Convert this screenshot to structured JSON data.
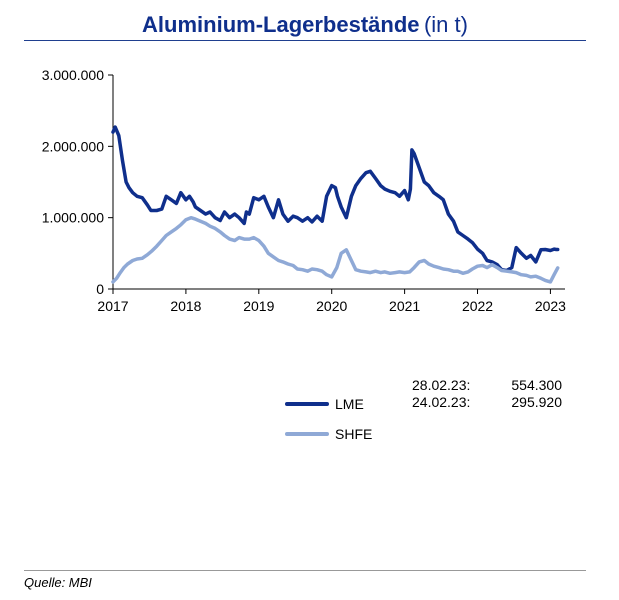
{
  "title": {
    "main": "Aluminium-Lagerbestände",
    "unit": "(in t)"
  },
  "colors": {
    "LME": "#0f2f8c",
    "SHFE": "#8fa9d6"
  },
  "notes": [
    {
      "date": "28.02.23:",
      "value": "554.300"
    },
    {
      "date": "24.02.23:",
      "value": "295.920"
    }
  ],
  "legend": [
    {
      "label": "LME",
      "color": "#0f2f8c"
    },
    {
      "label": "SHFE",
      "color": "#8fa9d6"
    }
  ],
  "footer": "Quelle: MBI",
  "chart_data": {
    "type": "line",
    "title": "Aluminium-Lagerbestände (in t)",
    "xlabel": "",
    "ylabel": "",
    "ylim": [
      0,
      3000000
    ],
    "xlim": [
      2017.0,
      2023.2
    ],
    "yticks": [
      0,
      1000000,
      2000000,
      3000000
    ],
    "ytick_labels": [
      "0",
      "1.000.000",
      "2.000.000",
      "3.000.000"
    ],
    "xticks": [
      2017,
      2018,
      2019,
      2020,
      2021,
      2022,
      2023
    ],
    "xtick_labels": [
      "2017",
      "2018",
      "2019",
      "2020",
      "2021",
      "2022",
      "2023"
    ],
    "grid": false,
    "series": [
      {
        "name": "LME",
        "x": [
          2017.0,
          2017.03,
          2017.08,
          2017.13,
          2017.18,
          2017.22,
          2017.27,
          2017.33,
          2017.4,
          2017.47,
          2017.52,
          2017.6,
          2017.67,
          2017.73,
          2017.8,
          2017.87,
          2017.93,
          2018.0,
          2018.05,
          2018.1,
          2018.13,
          2018.2,
          2018.27,
          2018.33,
          2018.4,
          2018.47,
          2018.53,
          2018.6,
          2018.67,
          2018.73,
          2018.8,
          2018.83,
          2018.87,
          2018.93,
          2019.0,
          2019.07,
          2019.13,
          2019.2,
          2019.27,
          2019.33,
          2019.4,
          2019.47,
          2019.53,
          2019.6,
          2019.67,
          2019.73,
          2019.8,
          2019.87,
          2019.93,
          2020.0,
          2020.05,
          2020.08,
          2020.13,
          2020.2,
          2020.27,
          2020.33,
          2020.4,
          2020.47,
          2020.53,
          2020.6,
          2020.67,
          2020.73,
          2020.8,
          2020.87,
          2020.93,
          2021.0,
          2021.05,
          2021.08,
          2021.1,
          2021.13,
          2021.2,
          2021.27,
          2021.33,
          2021.4,
          2021.47,
          2021.53,
          2021.6,
          2021.67,
          2021.73,
          2021.8,
          2021.87,
          2021.93,
          2022.0,
          2022.07,
          2022.13,
          2022.2,
          2022.27,
          2022.33,
          2022.4,
          2022.47,
          2022.53,
          2022.6,
          2022.67,
          2022.73,
          2022.8,
          2022.87,
          2022.93,
          2023.0,
          2023.05,
          2023.08,
          2023.1
        ],
        "y": [
          2200000,
          2270000,
          2150000,
          1800000,
          1500000,
          1420000,
          1350000,
          1300000,
          1280000,
          1180000,
          1100000,
          1100000,
          1120000,
          1300000,
          1250000,
          1200000,
          1350000,
          1250000,
          1300000,
          1220000,
          1150000,
          1100000,
          1050000,
          1080000,
          1000000,
          960000,
          1080000,
          1000000,
          1050000,
          1000000,
          920000,
          1080000,
          1050000,
          1280000,
          1250000,
          1300000,
          1150000,
          1000000,
          1250000,
          1050000,
          950000,
          1020000,
          1000000,
          950000,
          1000000,
          940000,
          1020000,
          950000,
          1300000,
          1450000,
          1420000,
          1300000,
          1150000,
          1000000,
          1300000,
          1450000,
          1550000,
          1630000,
          1650000,
          1550000,
          1450000,
          1400000,
          1370000,
          1350000,
          1300000,
          1380000,
          1250000,
          1400000,
          1950000,
          1900000,
          1700000,
          1500000,
          1450000,
          1350000,
          1300000,
          1250000,
          1050000,
          950000,
          800000,
          750000,
          700000,
          650000,
          560000,
          500000,
          400000,
          380000,
          340000,
          270000,
          260000,
          300000,
          580000,
          500000,
          430000,
          470000,
          380000,
          550000,
          554300,
          540000,
          560000,
          554300,
          554300
        ]
      },
      {
        "name": "SHFE",
        "x": [
          2017.0,
          2017.05,
          2017.1,
          2017.15,
          2017.2,
          2017.27,
          2017.33,
          2017.4,
          2017.47,
          2017.53,
          2017.6,
          2017.67,
          2017.73,
          2017.8,
          2017.87,
          2017.93,
          2018.0,
          2018.07,
          2018.13,
          2018.2,
          2018.27,
          2018.33,
          2018.4,
          2018.47,
          2018.53,
          2018.6,
          2018.67,
          2018.73,
          2018.8,
          2018.87,
          2018.93,
          2019.0,
          2019.07,
          2019.13,
          2019.2,
          2019.27,
          2019.33,
          2019.4,
          2019.47,
          2019.53,
          2019.6,
          2019.67,
          2019.73,
          2019.8,
          2019.87,
          2019.93,
          2020.0,
          2020.07,
          2020.13,
          2020.2,
          2020.27,
          2020.33,
          2020.4,
          2020.47,
          2020.53,
          2020.6,
          2020.67,
          2020.73,
          2020.8,
          2020.87,
          2020.93,
          2021.0,
          2021.07,
          2021.13,
          2021.2,
          2021.27,
          2021.33,
          2021.4,
          2021.47,
          2021.53,
          2021.6,
          2021.67,
          2021.73,
          2021.8,
          2021.87,
          2021.93,
          2022.0,
          2022.07,
          2022.13,
          2022.2,
          2022.27,
          2022.33,
          2022.4,
          2022.47,
          2022.53,
          2022.6,
          2022.67,
          2022.73,
          2022.8,
          2022.87,
          2022.93,
          2023.0,
          2023.05,
          2023.1
        ],
        "y": [
          100000,
          150000,
          230000,
          300000,
          350000,
          400000,
          420000,
          430000,
          480000,
          530000,
          600000,
          680000,
          750000,
          800000,
          850000,
          900000,
          970000,
          1000000,
          980000,
          950000,
          920000,
          880000,
          850000,
          800000,
          750000,
          700000,
          680000,
          720000,
          700000,
          700000,
          720000,
          680000,
          600000,
          500000,
          450000,
          400000,
          380000,
          350000,
          330000,
          280000,
          270000,
          250000,
          280000,
          270000,
          250000,
          200000,
          170000,
          300000,
          500000,
          550000,
          400000,
          270000,
          250000,
          240000,
          230000,
          250000,
          230000,
          240000,
          220000,
          230000,
          240000,
          230000,
          240000,
          300000,
          380000,
          400000,
          350000,
          320000,
          300000,
          280000,
          270000,
          250000,
          250000,
          220000,
          240000,
          280000,
          320000,
          330000,
          300000,
          340000,
          300000,
          260000,
          250000,
          240000,
          230000,
          200000,
          190000,
          170000,
          180000,
          150000,
          120000,
          100000,
          200000,
          295920
        ]
      }
    ]
  }
}
